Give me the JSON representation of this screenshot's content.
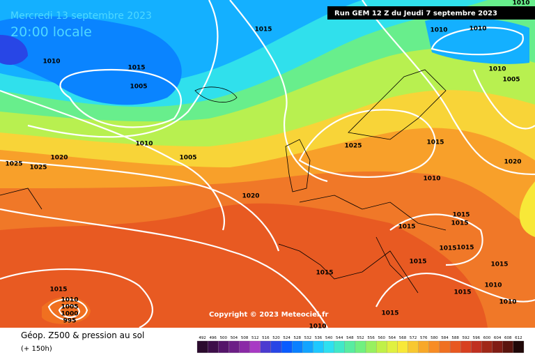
{
  "header": {
    "date": "Mercredi 13 septembre 2023",
    "time": "20:00 locale",
    "run": "Run GEM 12 Z du Jeudi 7 septembre 2023"
  },
  "copyright": "Copyright © 2023 Meteociel.fr",
  "legend": {
    "title": "Géop. Z500 & pression au sol",
    "subtitle": "(+ 150h)",
    "levels": [
      492,
      496,
      500,
      504,
      508,
      512,
      516,
      520,
      524,
      528,
      532,
      536,
      540,
      544,
      548,
      552,
      556,
      560,
      564,
      568,
      572,
      576,
      580,
      584,
      588,
      592,
      596,
      600,
      604,
      608,
      612
    ],
    "colors": [
      "#2b0b2e",
      "#3e0f4a",
      "#55156a",
      "#6c1f86",
      "#8a2aa6",
      "#a83ac4",
      "#4b3bd0",
      "#2846e6",
      "#0a5cff",
      "#0a80ff",
      "#12a4ff",
      "#1ec8ff",
      "#2ee0f0",
      "#40e8c8",
      "#58eca0",
      "#70f080",
      "#98f060",
      "#c0f048",
      "#e0f040",
      "#f8e838",
      "#f8c830",
      "#f8a828",
      "#f88c24",
      "#f07020",
      "#e85820",
      "#d84020",
      "#c03020",
      "#a02818",
      "#801c14",
      "#5a140e",
      "#200808"
    ]
  },
  "isobars": [
    "1010",
    "1015",
    "1010",
    "1010",
    "1010",
    "1015",
    "1005",
    "1010",
    "1005",
    "1010",
    "1005",
    "1025",
    "1015",
    "1020",
    "1025",
    "1025",
    "1020",
    "1010",
    "1020",
    "1015",
    "1015",
    "1015",
    "1015",
    "1015",
    "1015",
    "1015",
    "1015",
    "1015",
    "1010",
    "1015",
    "1010",
    "1005",
    "1000",
    "995",
    "1010",
    "1015",
    "1010"
  ]
}
